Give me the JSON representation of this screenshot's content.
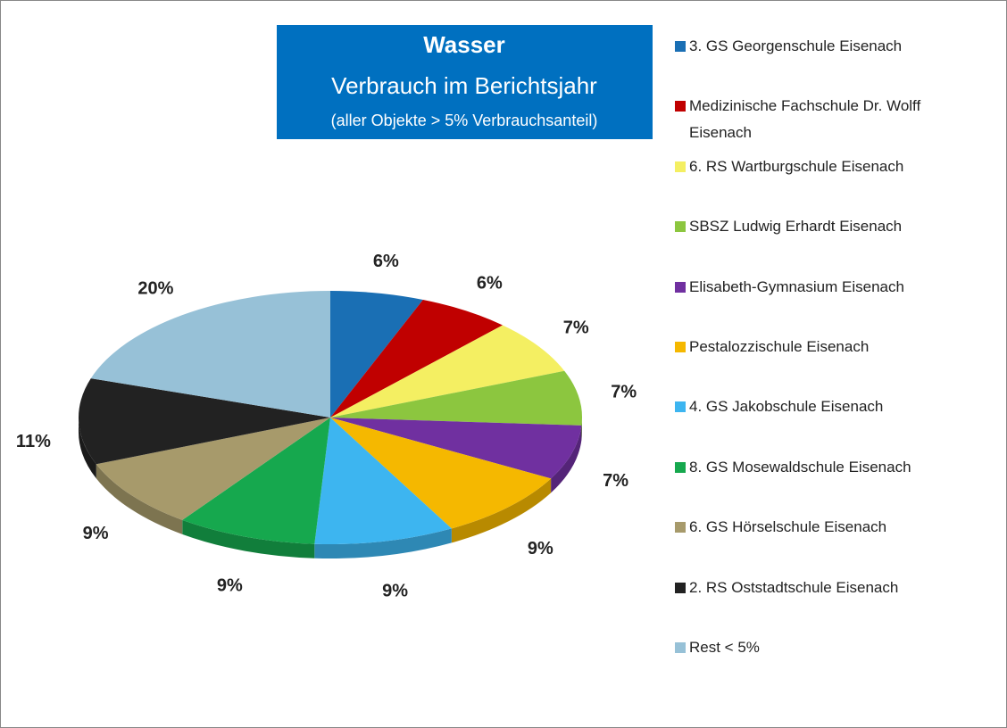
{
  "chart_data": {
    "type": "pie",
    "title": "Wasser",
    "subtitle": "Verbrauch im Berichtsjahr",
    "note": "(aller Objekte > 5% Verbrauchsanteil)",
    "categories": [
      "3. GS Georgenschule Eisenach",
      "Medizinische Fachschule Dr. Wolff Eisenach",
      "6. RS Wartburgschule Eisenach",
      "SBSZ Ludwig Erhardt Eisenach",
      "Elisabeth-Gymnasium Eisenach",
      "Pestalozzischule Eisenach",
      "4. GS Jakobschule Eisenach",
      "8. GS Mosewaldschule Eisenach",
      "6. GS Hörselschule Eisenach",
      "2. RS Oststadtschule Eisenach",
      "Rest < 5%"
    ],
    "values": [
      6,
      6,
      7,
      7,
      7,
      9,
      9,
      9,
      9,
      11,
      20
    ],
    "value_labels": [
      "6%",
      "6%",
      "7%",
      "7%",
      "7%",
      "9%",
      "9%",
      "9%",
      "9%",
      "11%",
      "20%"
    ],
    "colors": [
      "#1a6fb4",
      "#c00000",
      "#f4ef62",
      "#8cc63f",
      "#7030a0",
      "#f5b800",
      "#3db5f0",
      "#16a84e",
      "#a79a6b",
      "#222222",
      "#97c1d7"
    ]
  }
}
